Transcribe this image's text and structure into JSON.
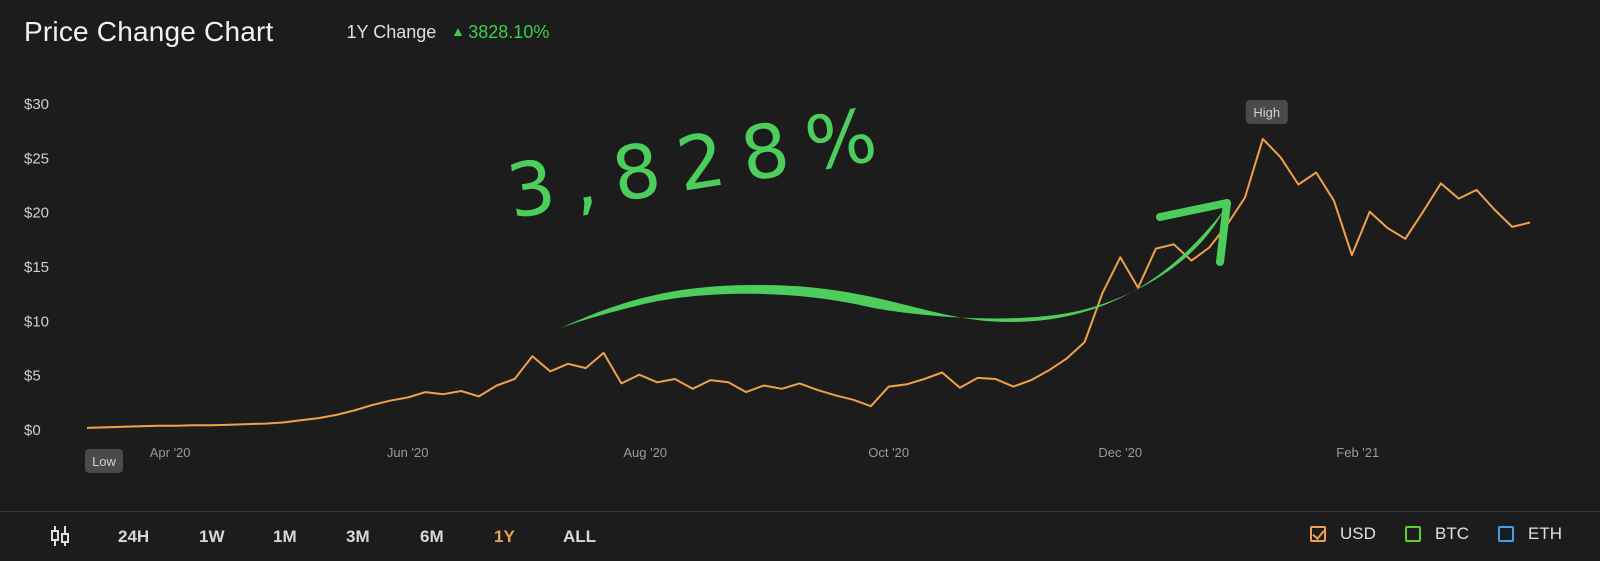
{
  "header": {
    "title": "Price Change Chart",
    "change_label": "1Y Change",
    "change_value": "3828.10%"
  },
  "annotation": {
    "text": "3,828%",
    "color": "#4ccd5c"
  },
  "badges": {
    "low": "Low",
    "high": "High"
  },
  "colors": {
    "line": "#f0a04b",
    "accent_green": "#3ccf4e",
    "grid_text": "#cfcfcf"
  },
  "chart_data": {
    "type": "line",
    "title": "Price Change Chart",
    "xlabel": "",
    "ylabel": "",
    "ylim": [
      0,
      30
    ],
    "y_ticks": [
      "$0",
      "$5",
      "$10",
      "$15",
      "$20",
      "$25",
      "$30"
    ],
    "x_ticks": [
      "Apr '20",
      "Jun '20",
      "Aug '20",
      "Oct '20",
      "Dec '20",
      "Feb '21"
    ],
    "grid": false,
    "series": [
      {
        "currency": "USD",
        "x": [
          0,
          6,
          12,
          18,
          24,
          30,
          36,
          42,
          48,
          54,
          60,
          66,
          72,
          78,
          84,
          90,
          96,
          102,
          108,
          114,
          120,
          126,
          132,
          138,
          144,
          150,
          156,
          162,
          168,
          174,
          180,
          186,
          192,
          198,
          204,
          210,
          216,
          222,
          228,
          234,
          240,
          246,
          252,
          258,
          264,
          270,
          276,
          282,
          288,
          294,
          300,
          306,
          312,
          318,
          324,
          330,
          336,
          342,
          348,
          354,
          360,
          366
        ],
        "values": [
          0.1,
          0.15,
          0.2,
          0.25,
          0.3,
          0.3,
          0.35,
          0.35,
          0.4,
          0.45,
          0.5,
          0.6,
          0.8,
          1.0,
          1.3,
          1.7,
          2.2,
          2.6,
          2.9,
          3.4,
          3.2,
          3.5,
          3.0,
          4.0,
          4.6,
          6.7,
          5.3,
          6.0,
          5.6,
          7.0,
          4.2,
          5.0,
          4.3,
          4.6,
          3.7,
          4.5,
          4.3,
          3.4,
          4.0,
          3.7,
          4.2,
          3.6,
          3.1,
          2.7,
          2.1,
          3.9,
          4.1,
          4.6,
          5.2,
          3.8,
          4.7,
          4.6,
          3.9,
          4.5,
          5.4,
          6.5,
          8.0,
          12.5,
          15.8,
          13.0,
          16.6,
          17.0
        ]
      }
    ],
    "series_extra": [
      {
        "x": [
          372,
          378,
          384,
          390,
          396,
          402,
          408,
          414,
          420,
          426,
          432,
          438,
          444,
          450,
          456,
          462,
          468,
          474,
          480,
          486
        ],
        "values": [
          15.5,
          16.7,
          18.8,
          21.3,
          26.7,
          25.0,
          22.5,
          23.6,
          21.0,
          16.0,
          20.0,
          18.5,
          17.5,
          20.0,
          22.6,
          21.2,
          22.0,
          20.2,
          18.6,
          19.0
        ]
      }
    ],
    "x_tick_positions": [
      28,
      108,
      188,
      270,
      348,
      428
    ],
    "x_max": 486,
    "low_point": {
      "x": 0,
      "value": 0.1
    },
    "high_point": {
      "x": 396,
      "value": 26.7
    }
  },
  "toolbar": {
    "ranges": [
      "24H",
      "1W",
      "1M",
      "3M",
      "6M",
      "1Y",
      "ALL"
    ],
    "active_range": "1Y",
    "legend": [
      {
        "label": "USD",
        "color": "#f0a04b",
        "checked": true
      },
      {
        "label": "BTC",
        "color": "#5ccf2a",
        "checked": false
      },
      {
        "label": "ETH",
        "color": "#3fa0f0",
        "checked": false
      }
    ]
  }
}
